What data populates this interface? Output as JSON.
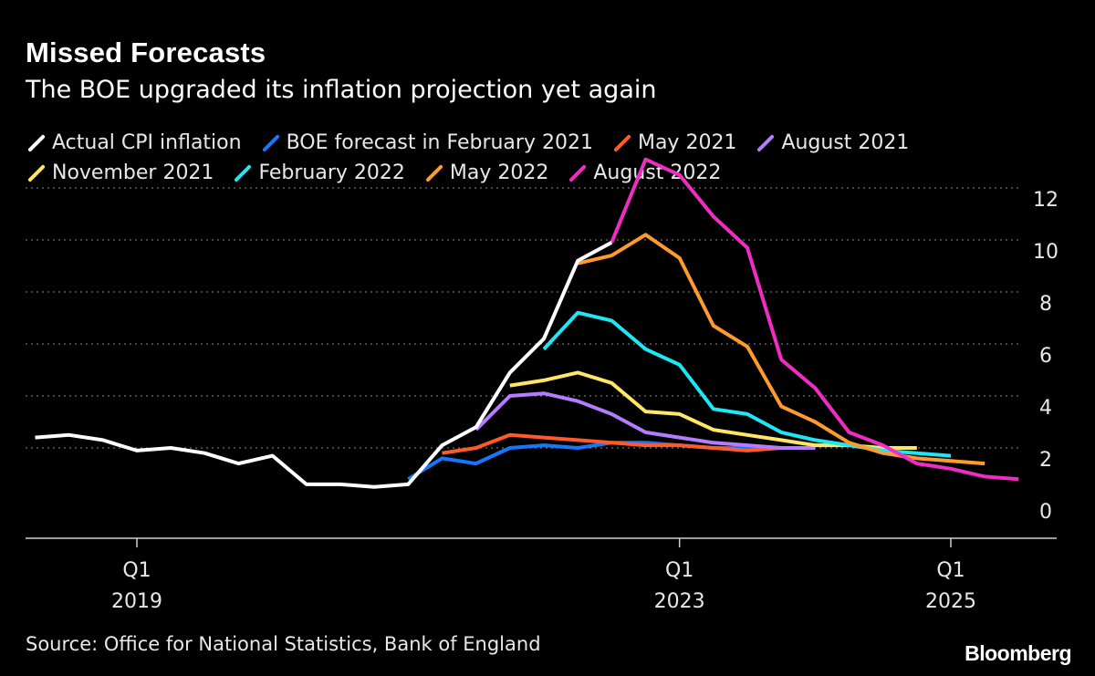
{
  "chart_data": {
    "type": "line",
    "title": "Missed Forecasts",
    "subtitle": "The BOE upgraded its inflation projection yet again",
    "x_tick_labels": [
      {
        "quarter": "Q1",
        "year": "2019",
        "x": 2019.0
      },
      {
        "quarter": "Q1",
        "year": "2023",
        "x": 2023.0
      },
      {
        "quarter": "Q1",
        "year": "2025",
        "x": 2025.0
      }
    ],
    "xlim": [
      2018.2,
      2025.8
    ],
    "ylim": [
      -1,
      13
    ],
    "y_ticks": [
      "0",
      "2",
      "4",
      "6",
      "8",
      "10",
      "12"
    ],
    "grid": "horizontal dotted",
    "legend_position": "top",
    "source": "Source: Office for National Statistics, Bank of England",
    "brand": "Bloomberg",
    "series": [
      {
        "name": "Actual CPI inflation",
        "color": "#ffffff",
        "points": [
          [
            2018.25,
            2.4
          ],
          [
            2018.5,
            2.5
          ],
          [
            2018.75,
            2.3
          ],
          [
            2019.0,
            1.9
          ],
          [
            2019.25,
            2.0
          ],
          [
            2019.5,
            1.8
          ],
          [
            2019.75,
            1.4
          ],
          [
            2020.0,
            1.7
          ],
          [
            2020.25,
            0.6
          ],
          [
            2020.5,
            0.6
          ],
          [
            2020.75,
            0.5
          ],
          [
            2021.0,
            0.6
          ],
          [
            2021.25,
            2.1
          ],
          [
            2021.5,
            2.8
          ],
          [
            2021.75,
            4.9
          ],
          [
            2022.0,
            6.2
          ],
          [
            2022.25,
            9.2
          ],
          [
            2022.5,
            9.9
          ]
        ]
      },
      {
        "name": "BOE forecast in February 2021",
        "color": "#1478ff",
        "points": [
          [
            2021.0,
            0.8
          ],
          [
            2021.25,
            1.6
          ],
          [
            2021.5,
            1.4
          ],
          [
            2021.75,
            2.0
          ],
          [
            2022.0,
            2.1
          ],
          [
            2022.25,
            2.0
          ],
          [
            2022.5,
            2.2
          ],
          [
            2022.75,
            2.2
          ],
          [
            2023.0,
            2.1
          ],
          [
            2023.25,
            2.0
          ],
          [
            2023.5,
            2.0
          ],
          [
            2023.75,
            2.0
          ],
          [
            2024.0,
            2.0
          ]
        ]
      },
      {
        "name": "May 2021",
        "color": "#ff5a28",
        "points": [
          [
            2021.25,
            1.8
          ],
          [
            2021.5,
            2.0
          ],
          [
            2021.75,
            2.5
          ],
          [
            2022.0,
            2.4
          ],
          [
            2022.25,
            2.3
          ],
          [
            2022.5,
            2.2
          ],
          [
            2022.75,
            2.1
          ],
          [
            2023.0,
            2.1
          ],
          [
            2023.25,
            2.0
          ],
          [
            2023.5,
            1.9
          ],
          [
            2023.75,
            2.0
          ],
          [
            2024.0,
            2.0
          ]
        ]
      },
      {
        "name": "August 2021",
        "color": "#b47cff",
        "points": [
          [
            2021.5,
            2.7
          ],
          [
            2021.75,
            4.0
          ],
          [
            2022.0,
            4.1
          ],
          [
            2022.25,
            3.8
          ],
          [
            2022.5,
            3.3
          ],
          [
            2022.75,
            2.6
          ],
          [
            2023.0,
            2.4
          ],
          [
            2023.25,
            2.2
          ],
          [
            2023.5,
            2.1
          ],
          [
            2023.75,
            2.0
          ],
          [
            2024.0,
            2.0
          ]
        ]
      },
      {
        "name": "November 2021",
        "color": "#ffe664",
        "points": [
          [
            2021.75,
            4.4
          ],
          [
            2022.0,
            4.6
          ],
          [
            2022.25,
            4.9
          ],
          [
            2022.5,
            4.5
          ],
          [
            2022.75,
            3.4
          ],
          [
            2023.0,
            3.3
          ],
          [
            2023.25,
            2.7
          ],
          [
            2023.5,
            2.5
          ],
          [
            2023.75,
            2.3
          ],
          [
            2024.0,
            2.1
          ],
          [
            2024.25,
            2.1
          ],
          [
            2024.5,
            2.0
          ],
          [
            2024.75,
            2.0
          ]
        ]
      },
      {
        "name": "February 2022",
        "color": "#1ee6f5",
        "points": [
          [
            2022.0,
            5.8
          ],
          [
            2022.25,
            7.2
          ],
          [
            2022.5,
            6.9
          ],
          [
            2022.75,
            5.8
          ],
          [
            2023.0,
            5.2
          ],
          [
            2023.25,
            3.5
          ],
          [
            2023.5,
            3.3
          ],
          [
            2023.75,
            2.6
          ],
          [
            2024.0,
            2.3
          ],
          [
            2024.25,
            2.1
          ],
          [
            2024.5,
            1.9
          ],
          [
            2024.75,
            1.8
          ],
          [
            2025.0,
            1.7
          ]
        ]
      },
      {
        "name": "May 2022",
        "color": "#ff9b2d",
        "points": [
          [
            2022.25,
            9.1
          ],
          [
            2022.5,
            9.4
          ],
          [
            2022.75,
            10.2
          ],
          [
            2023.0,
            9.3
          ],
          [
            2023.25,
            6.7
          ],
          [
            2023.5,
            5.9
          ],
          [
            2023.75,
            3.6
          ],
          [
            2024.0,
            3.0
          ],
          [
            2024.25,
            2.2
          ],
          [
            2024.5,
            1.8
          ],
          [
            2024.75,
            1.6
          ],
          [
            2025.0,
            1.5
          ],
          [
            2025.25,
            1.4
          ]
        ]
      },
      {
        "name": "August 2022",
        "color": "#f02dc3",
        "points": [
          [
            2022.5,
            9.9
          ],
          [
            2022.75,
            13.1
          ],
          [
            2023.0,
            12.5
          ],
          [
            2023.25,
            10.9
          ],
          [
            2023.5,
            9.7
          ],
          [
            2023.75,
            5.4
          ],
          [
            2024.0,
            4.3
          ],
          [
            2024.25,
            2.6
          ],
          [
            2024.5,
            2.1
          ],
          [
            2024.75,
            1.4
          ],
          [
            2025.0,
            1.2
          ],
          [
            2025.25,
            0.9
          ],
          [
            2025.5,
            0.8
          ]
        ]
      }
    ]
  }
}
